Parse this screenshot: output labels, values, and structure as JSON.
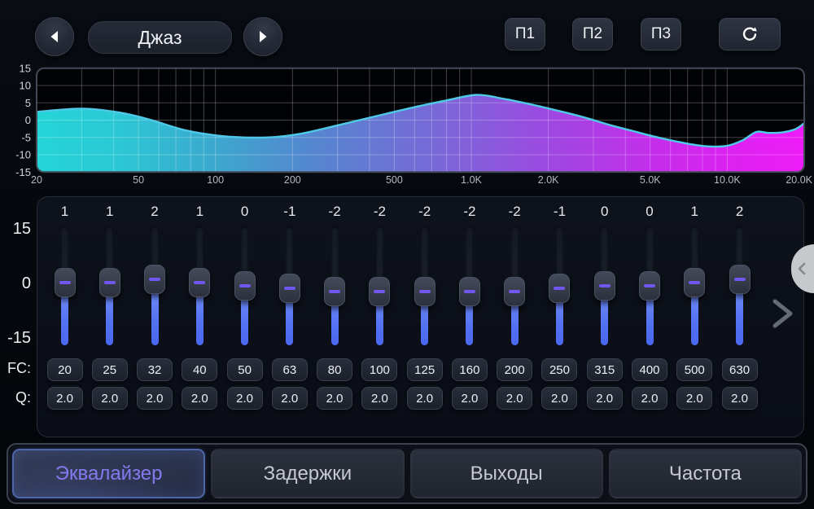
{
  "header": {
    "preset_name": "Джаз",
    "memory_buttons": [
      "П1",
      "П2",
      "П3"
    ]
  },
  "graph": {
    "db_range": [
      -15,
      15
    ],
    "freq_range": [
      20,
      20000
    ],
    "y_ticks": [
      15,
      10,
      5,
      0,
      -5,
      -10,
      -15
    ],
    "x_ticks": [
      {
        "f": 20,
        "label": "20"
      },
      {
        "f": 50,
        "label": "50"
      },
      {
        "f": 100,
        "label": "100"
      },
      {
        "f": 200,
        "label": "200"
      },
      {
        "f": 500,
        "label": "500"
      },
      {
        "f": 1000,
        "label": "1.0K"
      },
      {
        "f": 2000,
        "label": "2.0K"
      },
      {
        "f": 5000,
        "label": "5.0K"
      },
      {
        "f": 10000,
        "label": "10.0K"
      },
      {
        "f": 20000,
        "label": "20.0K"
      }
    ],
    "curve_points": [
      [
        20,
        2.4
      ],
      [
        30,
        3.3
      ],
      [
        42,
        2.2
      ],
      [
        55,
        0.2
      ],
      [
        75,
        -2.8
      ],
      [
        100,
        -4.4
      ],
      [
        130,
        -5.0
      ],
      [
        170,
        -4.9
      ],
      [
        220,
        -3.8
      ],
      [
        300,
        -1.5
      ],
      [
        400,
        0.7
      ],
      [
        500,
        2.4
      ],
      [
        630,
        4.1
      ],
      [
        800,
        5.7
      ],
      [
        1050,
        7.3
      ],
      [
        1350,
        6.1
      ],
      [
        1700,
        4.6
      ],
      [
        2100,
        3.0
      ],
      [
        2700,
        1.0
      ],
      [
        3400,
        -1.2
      ],
      [
        4300,
        -3.2
      ],
      [
        5500,
        -5.2
      ],
      [
        7000,
        -6.8
      ],
      [
        8500,
        -7.6
      ],
      [
        10000,
        -7.4
      ],
      [
        11500,
        -5.8
      ],
      [
        13000,
        -3.4
      ],
      [
        14500,
        -3.7
      ],
      [
        16500,
        -3.5
      ],
      [
        18500,
        -2.6
      ],
      [
        20000,
        -0.9
      ]
    ],
    "colors": {
      "line": "#4fc9e8",
      "gradient": [
        "#24d5d7",
        "#2bc9d5",
        "#3aabce",
        "#5388cf",
        "#6d72d4",
        "#855edb",
        "#a146e2",
        "#c32eea",
        "#db22f0",
        "#ee1cf8"
      ],
      "grid": "rgba(255,255,255,0.26)",
      "plot_bg": "#010205",
      "border": "#434a57"
    }
  },
  "equalizer": {
    "scale_labels": [
      "15",
      "0",
      "-15"
    ],
    "fc_row_label": "FC:",
    "q_row_label": "Q:",
    "gain_range": [
      -15,
      15
    ],
    "bands": [
      {
        "gain": 1,
        "fc": "20",
        "q": "2.0"
      },
      {
        "gain": 1,
        "fc": "25",
        "q": "2.0"
      },
      {
        "gain": 2,
        "fc": "32",
        "q": "2.0"
      },
      {
        "gain": 1,
        "fc": "40",
        "q": "2.0"
      },
      {
        "gain": 0,
        "fc": "50",
        "q": "2.0"
      },
      {
        "gain": -1,
        "fc": "63",
        "q": "2.0"
      },
      {
        "gain": -2,
        "fc": "80",
        "q": "2.0"
      },
      {
        "gain": -2,
        "fc": "100",
        "q": "2.0"
      },
      {
        "gain": -2,
        "fc": "125",
        "q": "2.0"
      },
      {
        "gain": -2,
        "fc": "160",
        "q": "2.0"
      },
      {
        "gain": -2,
        "fc": "200",
        "q": "2.0"
      },
      {
        "gain": -1,
        "fc": "250",
        "q": "2.0"
      },
      {
        "gain": 0,
        "fc": "315",
        "q": "2.0"
      },
      {
        "gain": 0,
        "fc": "400",
        "q": "2.0"
      },
      {
        "gain": 1,
        "fc": "500",
        "q": "2.0"
      },
      {
        "gain": 2,
        "fc": "630",
        "q": "2.0"
      }
    ]
  },
  "tabs": [
    {
      "label": "Эквалайзер",
      "active": true
    },
    {
      "label": "Задержки",
      "active": false
    },
    {
      "label": "Выходы",
      "active": false
    },
    {
      "label": "Частота",
      "active": false
    }
  ]
}
